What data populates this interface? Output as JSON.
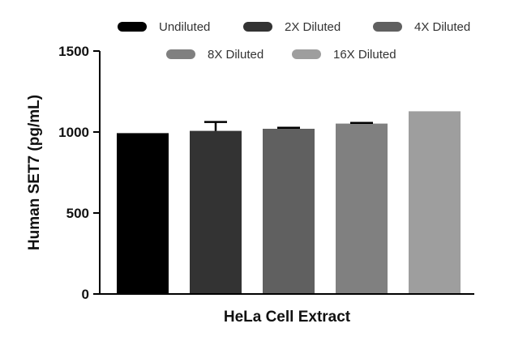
{
  "chart_data": {
    "type": "bar",
    "title": "",
    "xlabel": "HeLa Cell Extract",
    "ylabel": "Human SET7 (pg/mL)",
    "ylim": [
      0,
      1500
    ],
    "yticks": [
      0,
      500,
      1000,
      1500
    ],
    "categories": [
      "HeLa Cell Extract"
    ],
    "legend_position": "top",
    "grid": false,
    "series": [
      {
        "name": "Undiluted",
        "values": [
          993
        ],
        "error": [
          0
        ],
        "color": "#000000"
      },
      {
        "name": "2X Diluted",
        "values": [
          1007
        ],
        "error": [
          55
        ],
        "color": "#333333"
      },
      {
        "name": "4X Diluted",
        "values": [
          1020
        ],
        "error": [
          6
        ],
        "color": "#606060"
      },
      {
        "name": "8X Diluted",
        "values": [
          1052
        ],
        "error": [
          4
        ],
        "color": "#808080"
      },
      {
        "name": "16X Diluted",
        "values": [
          1128
        ],
        "error": [
          0
        ],
        "color": "#9e9e9e"
      }
    ]
  }
}
